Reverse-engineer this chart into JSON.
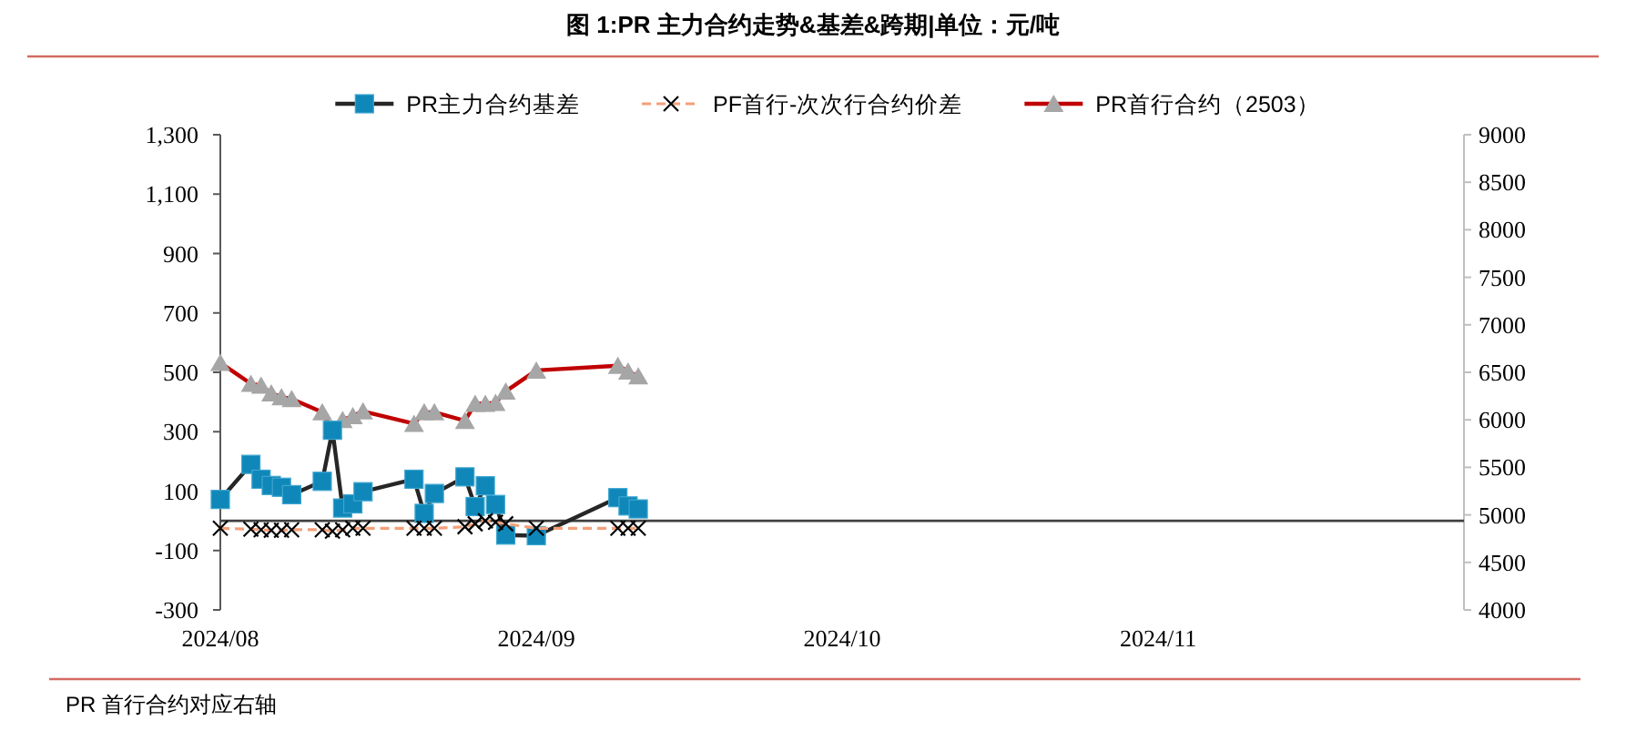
{
  "chart_data": {
    "type": "line",
    "title": "图 1:PR 主力合约走势&基差&跨期|单位：元/吨",
    "annotations": [
      "PR 首行合约对应右轴"
    ],
    "x": [
      "2024-08-02",
      "2024-08-05",
      "2024-08-06",
      "2024-08-07",
      "2024-08-08",
      "2024-08-09",
      "2024-08-12",
      "2024-08-13",
      "2024-08-14",
      "2024-08-15",
      "2024-08-16",
      "2024-08-21",
      "2024-08-22",
      "2024-08-23",
      "2024-08-26",
      "2024-08-27",
      "2024-08-28",
      "2024-08-29",
      "2024-08-30",
      "2024-09-02",
      "2024-09-10",
      "2024-09-11",
      "2024-09-12"
    ],
    "series": [
      {
        "name": "PR主力合约基差",
        "color": "#262626",
        "marker": "square",
        "colors": [
          "#0f87b9",
          "#0f87b9",
          "#0f87b9",
          "#0f87b9",
          "#0f87b9",
          "#0f87b9",
          "#0f87b9",
          "#0f87b9",
          "#0f87b9",
          "#0f87b9",
          "#0f87b9",
          "#0f87b9",
          "#0f87b9",
          "#0f87b9",
          "#0f87b9",
          "#0f87b9",
          "#0f87b9",
          "#0f87b9",
          "#0f87b9",
          "#0f87b9",
          "#0f87b9",
          "#0f87b9",
          "#0f87b9"
        ],
        "values": [
          72,
          190,
          140,
          119,
          113,
          88,
          133,
          305,
          43,
          57,
          98,
          140,
          25,
          92,
          148,
          48,
          118,
          55,
          -48,
          -50,
          78,
          50,
          40
        ]
      },
      {
        "name": "PF首行-次次行合约价差",
        "color": "#f4a07a",
        "marker": "cross",
        "line_style": "dashed",
        "colors": [
          "#000000",
          "#000000",
          "#000000",
          "#000000",
          "#000000",
          "#000000",
          "#000000",
          "#000000",
          "#000000",
          "#000000",
          "#000000",
          "#000000",
          "#000000",
          "#000000",
          "#000000",
          "#000000",
          "#000000",
          "#000000",
          "#000000",
          "#000000",
          "#000000",
          "#000000",
          "#000000"
        ],
        "values": [
          -25,
          -28,
          -30,
          -32,
          -32,
          -30,
          -30,
          -35,
          -30,
          -25,
          -25,
          -25,
          -25,
          -25,
          -20,
          -10,
          0,
          -5,
          -10,
          -25,
          -25,
          -25,
          -25
        ]
      },
      {
        "name": "PR首行合约（2503）",
        "color": "#c00000",
        "marker": "triangle",
        "axis": "y2",
        "colors": [
          "#a6a6a6",
          "#a6a6a6",
          "#a6a6a6",
          "#a6a6a6",
          "#a6a6a6",
          "#a6a6a6",
          "#a6a6a6",
          "#a6a6a6",
          "#a6a6a6",
          "#a6a6a6",
          "#a6a6a6",
          "#a6a6a6",
          "#a6a6a6",
          "#a6a6a6",
          "#a6a6a6",
          "#a6a6a6",
          "#a6a6a6",
          "#a6a6a6",
          "#a6a6a6",
          "#a6a6a6",
          "#a6a6a6",
          "#a6a6a6",
          "#a6a6a6"
        ],
        "values": [
          6600,
          6380,
          6360,
          6280,
          6240,
          6220,
          6080,
          5900,
          6000,
          6040,
          6090,
          5960,
          6080,
          6080,
          5990,
          6170,
          6170,
          6180,
          6300,
          6520,
          6570,
          6510,
          6460
        ]
      }
    ],
    "xlim": [
      "2024-08-02",
      "2024-12-02"
    ],
    "xticks": [
      {
        "value": "2024-08-02",
        "label": "2024/08"
      },
      {
        "value": "2024-09-02",
        "label": "2024/09"
      },
      {
        "value": "2024-10-02",
        "label": "2024/10"
      },
      {
        "value": "2024-11-02",
        "label": "2024/11"
      }
    ],
    "ylim": [
      -300,
      1300
    ],
    "yticks": [
      -300,
      -100,
      100,
      300,
      500,
      700,
      900,
      {
        "value": 1100,
        "label": "1,100"
      },
      {
        "value": 1300,
        "label": "1,300"
      }
    ],
    "y2lim": [
      4000,
      9000
    ],
    "y2ticks": [
      4000,
      4500,
      5000,
      5500,
      6000,
      6500,
      7000,
      7500,
      8000,
      8500,
      9000
    ],
    "legend": "top"
  }
}
